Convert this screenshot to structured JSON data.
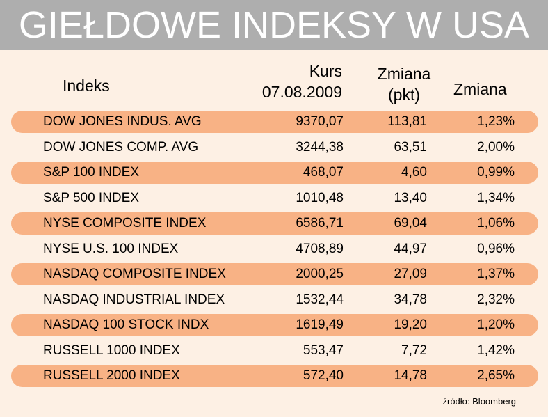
{
  "title": "GIEŁDOWE INDEKSY W USA",
  "headers": {
    "indeks": "Indeks",
    "kurs_line1": "Kurs",
    "kurs_line2": "07.08.2009",
    "zmiana_pkt_line1": "Zmiana",
    "zmiana_pkt_line2": "(pkt)",
    "zmiana_pct": "Zmiana"
  },
  "rows": [
    {
      "name": "DOW JONES INDUS. AVG",
      "kurs": "9370,07",
      "pkt": "113,81",
      "pct": "1,23%"
    },
    {
      "name": "DOW JONES COMP. AVG",
      "kurs": "3244,38",
      "pkt": "63,51",
      "pct": "2,00%"
    },
    {
      "name": "S&P 100 INDEX",
      "kurs": "468,07",
      "pkt": "4,60",
      "pct": "0,99%"
    },
    {
      "name": "S&P 500 INDEX",
      "kurs": "1010,48",
      "pkt": "13,40",
      "pct": "1,34%"
    },
    {
      "name": "NYSE COMPOSITE INDEX",
      "kurs": "6586,71",
      "pkt": "69,04",
      "pct": "1,06%"
    },
    {
      "name": "NYSE U.S. 100 INDEX",
      "kurs": "4708,89",
      "pkt": "44,97",
      "pct": "0,96%"
    },
    {
      "name": "NASDAQ COMPOSITE INDEX",
      "kurs": "2000,25",
      "pkt": "27,09",
      "pct": "1,37%"
    },
    {
      "name": "NASDAQ INDUSTRIAL INDEX",
      "kurs": "1532,44",
      "pkt": "34,78",
      "pct": "2,32%"
    },
    {
      "name": "NASDAQ 100 STOCK INDX",
      "kurs": "1619,49",
      "pkt": "19,20",
      "pct": "1,20%"
    },
    {
      "name": "RUSSELL 1000 INDEX",
      "kurs": "553,47",
      "pkt": "7,72",
      "pct": "1,42%"
    },
    {
      "name": "RUSSELL 2000 INDEX",
      "kurs": "572,40",
      "pkt": "14,78",
      "pct": "2,65%"
    }
  ],
  "source": "źródło: Bloomberg",
  "colors": {
    "background": "#fdf0e4",
    "title_bar": "#aeaeae",
    "row_highlight": "#f8b285"
  }
}
